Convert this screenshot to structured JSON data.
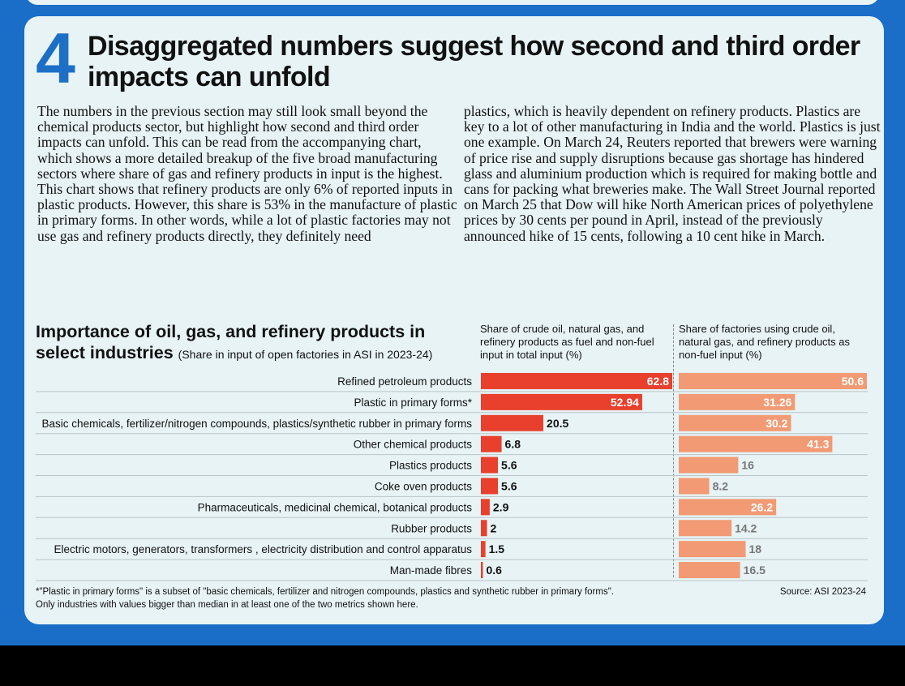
{
  "article": {
    "section_number": "4",
    "heading": "Disaggregated numbers suggest how second and third order impacts can unfold",
    "column1": "The numbers in the previous section may still look small beyond the chemical products sector, but highlight how second and third order impacts can unfold. This can be read from the accompanying chart, which shows a more detailed breakup of the five broad manufacturing sectors where share of gas and refinery products in input is the highest. This chart shows that refinery products are only 6% of reported inputs in plastic products. However, this share is 53% in the manufacture of plastic in primary forms. In other words, while a lot of plastic factories may not use gas and refinery products directly, they definitely need",
    "column2": "plastics, which is heavily dependent on refinery products. Plastics are key to a lot of other manufacturing in India and the world. Plastics is just one example. On March 24, Reuters reported that brewers were warning of price rise and supply disruptions because gas shortage has hindered glass and aluminium production which is required for making bottle and cans for packing what breweries make. The Wall Street Journal reported on March 25 that Dow will hike North American prices of polyethylene prices by 30 cents per pound in April, instead of the previously announced hike of 15 cents, following a 10 cent hike in March."
  },
  "chart_data": {
    "type": "bar",
    "title": "Importance of oil, gas, and refinery products in select industries",
    "subtitle": "(Share in input of open factories in ASI in 2023-24)",
    "categories": [
      "Refined petroleum products",
      "Plastic in primary forms*",
      "Basic chemicals, fertilizer/nitrogen compounds, plastics/synthetic rubber in primary forms",
      "Other chemical products",
      "Plastics products",
      "Coke oven products",
      "Pharmaceuticals, medicinal chemical, botanical products",
      "Rubber products",
      "Electric motors, generators, transformers , electricity  distribution and control apparatus",
      "Man-made fibres"
    ],
    "series": [
      {
        "name": "Share of crude oil, natural gas, and refinery products as fuel and non-fuel input in total input (%)",
        "values": [
          62.8,
          52.94,
          20.5,
          6.8,
          5.6,
          5.6,
          2.9,
          2,
          1.5,
          0.6
        ],
        "labels": [
          "62.8",
          "52.94",
          "20.5",
          "6.8",
          "5.6",
          "5.6",
          "2.9",
          "2",
          "1.5",
          "0.6"
        ],
        "color": "#e8402c"
      },
      {
        "name": "Share of factories using crude oil, natural gas, and refinery products as non-fuel input (%)",
        "values": [
          50.6,
          31.26,
          30.2,
          41.3,
          16,
          8.2,
          26.2,
          14.2,
          18,
          16.5
        ],
        "labels": [
          "50.6",
          "31.26",
          "30.2",
          "41.3",
          "16",
          "8.2",
          "26.2",
          "14.2",
          "18",
          "16.5"
        ],
        "color": "#f29a73"
      }
    ],
    "footnote": "*\"Plastic in primary forms\" is a subset of \"basic chemicals, fertilizer and nitrogen compounds, plastics and synthetic rubber in primary forms\". Only industries with values bigger than median in at least one of the two metrics shown here.",
    "source": "Source: ASI 2023-24",
    "grid": false
  }
}
